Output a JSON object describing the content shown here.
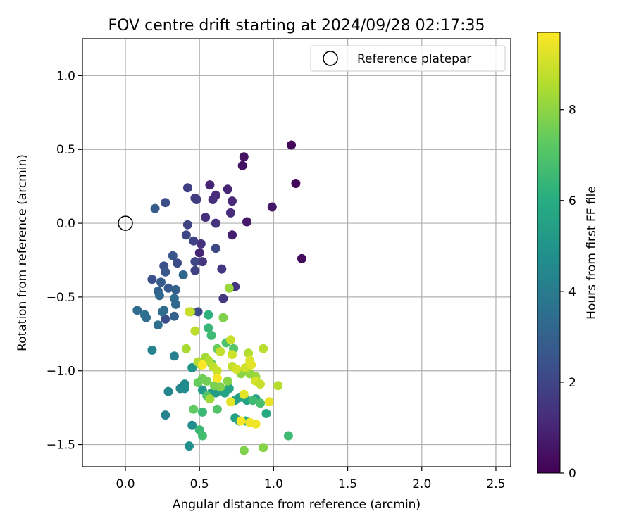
{
  "chart_data": {
    "type": "scatter",
    "title": "FOV centre drift starting at 2024/09/28 02:17:35",
    "xlabel": "Angular distance from reference (arcmin)",
    "ylabel": "Rotation from reference (arcmin)",
    "xlim": [
      -0.29,
      2.6
    ],
    "ylim": [
      -1.65,
      1.25
    ],
    "xticks": [
      0.0,
      0.5,
      1.0,
      1.5,
      2.0,
      2.5
    ],
    "xtick_labels": [
      "0.0",
      "0.5",
      "1.0",
      "1.5",
      "2.0",
      "2.5"
    ],
    "yticks": [
      -1.5,
      -1.0,
      -0.5,
      0.0,
      0.5,
      1.0
    ],
    "ytick_labels": [
      "−1.5",
      "−1.0",
      "−0.5",
      "0.0",
      "0.5",
      "1.0"
    ],
    "grid": true,
    "legend": {
      "position": "top-right",
      "label": "Reference platepar"
    },
    "reference_point": {
      "x": 0.0,
      "y": 0.0
    },
    "colorbar": {
      "label": "Hours from first FF file",
      "range": [
        0,
        9.7
      ],
      "ticks": [
        0,
        2,
        4,
        6,
        8
      ],
      "tick_labels": [
        "0",
        "2",
        "4",
        "6",
        "8"
      ],
      "colormap": "viridis"
    },
    "points": [
      [
        1.12,
        0.53,
        0.2
      ],
      [
        1.15,
        0.27,
        0.2
      ],
      [
        1.19,
        -0.24,
        0.3
      ],
      [
        0.8,
        0.45,
        0.5
      ],
      [
        0.79,
        0.39,
        0.5
      ],
      [
        0.99,
        0.11,
        0.6
      ],
      [
        0.82,
        0.01,
        0.7
      ],
      [
        0.72,
        -0.08,
        0.8
      ],
      [
        0.57,
        0.26,
        1.0
      ],
      [
        0.69,
        0.23,
        1.0
      ],
      [
        0.72,
        0.15,
        1.1
      ],
      [
        0.71,
        0.07,
        1.2
      ],
      [
        0.61,
        0.19,
        1.2
      ],
      [
        0.59,
        0.16,
        1.3
      ],
      [
        0.54,
        0.04,
        1.3
      ],
      [
        0.61,
        0.0,
        1.4
      ],
      [
        0.5,
        -0.2,
        1.0
      ],
      [
        0.51,
        -0.14,
        1.4
      ],
      [
        0.52,
        -0.26,
        1.5
      ],
      [
        0.65,
        -0.31,
        1.5
      ],
      [
        0.66,
        -0.51,
        1.6
      ],
      [
        0.74,
        -0.43,
        1.5
      ],
      [
        0.47,
        0.17,
        1.7
      ],
      [
        0.48,
        0.16,
        1.7
      ],
      [
        0.42,
        0.24,
        1.8
      ],
      [
        0.42,
        -0.01,
        1.9
      ],
      [
        0.46,
        -0.12,
        1.9
      ],
      [
        0.47,
        -0.26,
        2.0
      ],
      [
        0.47,
        -0.32,
        1.9
      ],
      [
        0.61,
        -0.17,
        2.1
      ],
      [
        0.41,
        -0.08,
        2.1
      ],
      [
        0.49,
        -0.6,
        2.2
      ],
      [
        0.35,
        -0.27,
        2.2
      ],
      [
        0.27,
        0.14,
        2.3
      ],
      [
        0.2,
        0.1,
        2.8
      ],
      [
        0.32,
        -0.22,
        2.6
      ],
      [
        0.26,
        -0.29,
        2.5
      ],
      [
        0.27,
        -0.33,
        2.6
      ],
      [
        0.18,
        -0.38,
        2.4
      ],
      [
        0.27,
        -0.65,
        2.3
      ],
      [
        0.24,
        -0.4,
        2.8
      ],
      [
        0.29,
        -0.44,
        2.7
      ],
      [
        0.34,
        -0.45,
        3.0
      ],
      [
        0.22,
        -0.46,
        3.0
      ],
      [
        0.23,
        -0.49,
        3.3
      ],
      [
        0.39,
        -0.35,
        3.2
      ],
      [
        0.33,
        -0.51,
        3.4
      ],
      [
        0.34,
        -0.55,
        3.3
      ],
      [
        0.25,
        -0.6,
        3.5
      ],
      [
        0.26,
        -0.59,
        3.4
      ],
      [
        0.33,
        -0.63,
        3.0
      ],
      [
        0.08,
        -0.59,
        3.4
      ],
      [
        0.13,
        -0.62,
        3.6
      ],
      [
        0.14,
        -0.64,
        3.5
      ],
      [
        0.22,
        -0.69,
        3.5
      ],
      [
        0.18,
        -0.86,
        4.3
      ],
      [
        0.33,
        -0.9,
        4.2
      ],
      [
        0.27,
        -1.3,
        4.3
      ],
      [
        0.29,
        -1.14,
        4.4
      ],
      [
        0.37,
        -1.12,
        4.5
      ],
      [
        0.4,
        -1.09,
        4.6
      ],
      [
        0.4,
        -1.12,
        4.7
      ],
      [
        0.43,
        -1.51,
        4.8
      ],
      [
        0.45,
        -1.37,
        4.7
      ],
      [
        0.45,
        -0.98,
        5.0
      ],
      [
        0.52,
        -1.13,
        5.2
      ],
      [
        0.58,
        -1.15,
        5.3
      ],
      [
        0.61,
        -1.15,
        5.3
      ],
      [
        0.67,
        -1.15,
        5.6
      ],
      [
        0.7,
        -1.12,
        5.6
      ],
      [
        0.74,
        -1.2,
        5.4
      ],
      [
        0.77,
        -1.18,
        5.4
      ],
      [
        0.79,
        -1.17,
        5.5
      ],
      [
        0.82,
        -1.2,
        5.6
      ],
      [
        0.88,
        -1.19,
        5.6
      ],
      [
        0.95,
        -1.29,
        5.8
      ],
      [
        0.77,
        -1.34,
        5.6
      ],
      [
        0.74,
        -1.32,
        5.5
      ],
      [
        0.81,
        -1.34,
        6.0
      ],
      [
        0.56,
        -0.62,
        6.2
      ],
      [
        0.56,
        -0.71,
        6.4
      ],
      [
        0.58,
        -0.76,
        6.6
      ],
      [
        0.52,
        -1.28,
        6.5
      ],
      [
        0.5,
        -1.4,
        6.5
      ],
      [
        0.52,
        -1.44,
        6.7
      ],
      [
        1.1,
        -1.44,
        6.6
      ],
      [
        0.86,
        -1.2,
        6.6
      ],
      [
        0.91,
        -1.22,
        6.8
      ],
      [
        0.62,
        -1.26,
        7.0
      ],
      [
        0.55,
        -1.17,
        7.0
      ],
      [
        0.68,
        -0.81,
        6.9
      ],
      [
        0.73,
        -0.85,
        7.1
      ],
      [
        0.58,
        -0.95,
        7.2
      ],
      [
        0.62,
        -0.85,
        7.4
      ],
      [
        0.46,
        -1.26,
        7.3
      ],
      [
        0.49,
        -1.08,
        7.4
      ],
      [
        0.52,
        -1.05,
        7.5
      ],
      [
        0.55,
        -1.07,
        7.6
      ],
      [
        0.6,
        -1.1,
        7.7
      ],
      [
        0.64,
        -1.11,
        7.8
      ],
      [
        0.66,
        -0.64,
        7.8
      ],
      [
        0.7,
        -0.44,
        8.2
      ],
      [
        0.69,
        -1.07,
        7.9
      ],
      [
        0.78,
        -1.02,
        8.0
      ],
      [
        0.84,
        -1.02,
        8.1
      ],
      [
        0.88,
        -1.04,
        8.2
      ],
      [
        0.44,
        -0.6,
        8.1
      ],
      [
        0.41,
        -0.85,
        8.4
      ],
      [
        0.49,
        -0.94,
        8.6
      ],
      [
        0.51,
        -0.96,
        8.5
      ],
      [
        0.54,
        -0.91,
        8.3
      ],
      [
        0.56,
        -0.93,
        8.5
      ],
      [
        0.59,
        -0.97,
        8.8
      ],
      [
        0.62,
        -1.0,
        8.9
      ],
      [
        0.64,
        -0.87,
        8.8
      ],
      [
        0.71,
        -0.79,
        8.9
      ],
      [
        0.72,
        -0.89,
        9.0
      ],
      [
        0.72,
        -0.97,
        8.8
      ],
      [
        0.75,
        -0.99,
        9.1
      ],
      [
        0.81,
        -0.98,
        9.0
      ],
      [
        0.83,
        -0.88,
        8.6
      ],
      [
        0.84,
        -0.93,
        9.2
      ],
      [
        0.85,
        -0.96,
        9.3
      ],
      [
        0.88,
        -1.07,
        9.1
      ],
      [
        0.91,
        -1.09,
        8.9
      ],
      [
        0.93,
        -0.85,
        8.7
      ],
      [
        1.03,
        -1.1,
        8.6
      ],
      [
        0.97,
        -1.21,
        9.4
      ],
      [
        0.88,
        -1.36,
        9.5
      ],
      [
        0.84,
        -1.35,
        9.5
      ],
      [
        0.78,
        -1.34,
        9.6
      ],
      [
        0.8,
        -1.16,
        9.3
      ],
      [
        0.71,
        -1.21,
        9.3
      ],
      [
        0.62,
        -1.05,
        9.6
      ],
      [
        0.52,
        -0.96,
        9.7
      ],
      [
        0.47,
        -0.73,
        8.7
      ],
      [
        0.43,
        -0.6,
        8.9
      ],
      [
        0.8,
        -1.54,
        7.8
      ],
      [
        0.93,
        -1.52,
        7.9
      ],
      [
        0.57,
        -1.19,
        8.3
      ]
    ]
  }
}
